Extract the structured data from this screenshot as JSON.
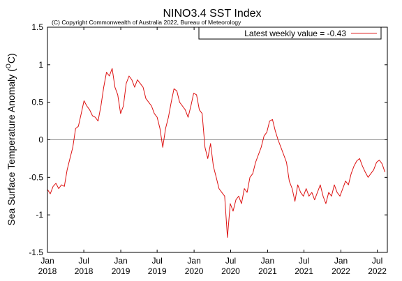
{
  "chart_data": {
    "type": "line",
    "title": "NINO3.4 SST Index",
    "subtitle": "(C) Copyright Commonwealth of Australia 2022, Bureau of Meteorology",
    "ylabel": "Sea Surface Temperature Anomaly (°C)",
    "ylabel_main": "Sea Surface Temperature Anomaly (",
    "ylabel_unit_sup": "O",
    "ylabel_unit": "C)",
    "xlabel": "",
    "ylim": [
      -1.5,
      1.5
    ],
    "yticks": [
      -1.5,
      -1,
      -0.5,
      0,
      0.5,
      1,
      1.5
    ],
    "ytick_labels": [
      "-1.5",
      "-1",
      "-0.5",
      "0",
      "0.5",
      "1",
      "1.5"
    ],
    "xlim": [
      "2018-01-01",
      "2022-08-20"
    ],
    "xticks": [
      {
        "date": "2018-01-01",
        "line1": "Jan",
        "line2": "2018"
      },
      {
        "date": "2018-07-01",
        "line1": "Jul",
        "line2": "2018"
      },
      {
        "date": "2019-01-01",
        "line1": "Jan",
        "line2": "2019"
      },
      {
        "date": "2019-07-01",
        "line1": "Jul",
        "line2": "2019"
      },
      {
        "date": "2020-01-01",
        "line1": "Jan",
        "line2": "2020"
      },
      {
        "date": "2020-07-01",
        "line1": "Jul",
        "line2": "2020"
      },
      {
        "date": "2021-01-01",
        "line1": "Jan",
        "line2": "2021"
      },
      {
        "date": "2021-07-01",
        "line1": "Jul",
        "line2": "2021"
      },
      {
        "date": "2022-01-01",
        "line1": "Jan",
        "line2": "2022"
      },
      {
        "date": "2022-07-01",
        "line1": "Jul",
        "line2": "2022"
      }
    ],
    "grid": false,
    "zero_line": true,
    "legend": {
      "position": "top-right",
      "label": "Latest weekly value = -0.43"
    },
    "series": [
      {
        "color": "#dd1111",
        "x": [
          "2018-01-01",
          "2018-01-15",
          "2018-01-29",
          "2018-02-12",
          "2018-02-26",
          "2018-03-12",
          "2018-03-26",
          "2018-04-09",
          "2018-04-23",
          "2018-05-07",
          "2018-05-21",
          "2018-06-04",
          "2018-06-18",
          "2018-07-02",
          "2018-07-16",
          "2018-07-30",
          "2018-08-13",
          "2018-08-27",
          "2018-09-10",
          "2018-09-24",
          "2018-10-08",
          "2018-10-22",
          "2018-11-05",
          "2018-11-19",
          "2018-12-03",
          "2018-12-17",
          "2018-12-31",
          "2019-01-14",
          "2019-01-28",
          "2019-02-11",
          "2019-02-25",
          "2019-03-11",
          "2019-03-25",
          "2019-04-08",
          "2019-04-22",
          "2019-05-06",
          "2019-05-20",
          "2019-06-03",
          "2019-06-17",
          "2019-07-01",
          "2019-07-15",
          "2019-07-29",
          "2019-08-12",
          "2019-08-26",
          "2019-09-09",
          "2019-09-23",
          "2019-10-07",
          "2019-10-21",
          "2019-11-04",
          "2019-11-18",
          "2019-12-02",
          "2019-12-16",
          "2019-12-30",
          "2020-01-13",
          "2020-01-27",
          "2020-02-10",
          "2020-02-24",
          "2020-03-09",
          "2020-03-23",
          "2020-04-06",
          "2020-04-20",
          "2020-05-04",
          "2020-05-18",
          "2020-06-01",
          "2020-06-15",
          "2020-06-29",
          "2020-07-13",
          "2020-07-27",
          "2020-08-10",
          "2020-08-24",
          "2020-09-07",
          "2020-09-21",
          "2020-10-05",
          "2020-10-19",
          "2020-11-02",
          "2020-11-16",
          "2020-11-30",
          "2020-12-14",
          "2020-12-28",
          "2021-01-11",
          "2021-01-25",
          "2021-02-08",
          "2021-02-22",
          "2021-03-08",
          "2021-03-22",
          "2021-04-05",
          "2021-04-19",
          "2021-05-03",
          "2021-05-17",
          "2021-05-31",
          "2021-06-14",
          "2021-06-28",
          "2021-07-12",
          "2021-07-26",
          "2021-08-09",
          "2021-08-23",
          "2021-09-06",
          "2021-09-20",
          "2021-10-04",
          "2021-10-18",
          "2021-11-01",
          "2021-11-15",
          "2021-11-29",
          "2021-12-13",
          "2021-12-27",
          "2022-01-10",
          "2022-01-24",
          "2022-02-07",
          "2022-02-21",
          "2022-03-07",
          "2022-03-21",
          "2022-04-04",
          "2022-04-18",
          "2022-05-02",
          "2022-05-16",
          "2022-05-30",
          "2022-06-13",
          "2022-06-27",
          "2022-07-11",
          "2022-07-25",
          "2022-08-08"
        ],
        "values": [
          -0.66,
          -0.72,
          -0.62,
          -0.58,
          -0.65,
          -0.6,
          -0.62,
          -0.4,
          -0.25,
          -0.1,
          0.15,
          0.18,
          0.35,
          0.52,
          0.45,
          0.4,
          0.32,
          0.3,
          0.25,
          0.45,
          0.7,
          0.9,
          0.85,
          0.95,
          0.7,
          0.6,
          0.35,
          0.45,
          0.75,
          0.85,
          0.8,
          0.7,
          0.8,
          0.75,
          0.7,
          0.55,
          0.5,
          0.45,
          0.35,
          0.3,
          0.15,
          -0.1,
          0.15,
          0.3,
          0.5,
          0.68,
          0.65,
          0.5,
          0.45,
          0.4,
          0.3,
          0.45,
          0.62,
          0.6,
          0.4,
          0.35,
          -0.1,
          -0.25,
          -0.05,
          -0.35,
          -0.5,
          -0.65,
          -0.7,
          -0.75,
          -1.3,
          -0.85,
          -0.95,
          -0.8,
          -0.75,
          -0.85,
          -0.65,
          -0.7,
          -0.5,
          -0.45,
          -0.3,
          -0.2,
          -0.1,
          0.05,
          0.1,
          0.25,
          0.27,
          0.12,
          0.0,
          -0.1,
          -0.2,
          -0.3,
          -0.55,
          -0.65,
          -0.82,
          -0.6,
          -0.7,
          -0.75,
          -0.65,
          -0.75,
          -0.7,
          -0.8,
          -0.7,
          -0.6,
          -0.75,
          -0.85,
          -0.7,
          -0.75,
          -0.6,
          -0.7,
          -0.75,
          -0.65,
          -0.55,
          -0.6,
          -0.45,
          -0.35,
          -0.28,
          -0.25,
          -0.35,
          -0.43,
          -0.5,
          -0.45,
          -0.4,
          -0.3,
          -0.27,
          -0.32,
          -0.43
        ]
      }
    ]
  }
}
